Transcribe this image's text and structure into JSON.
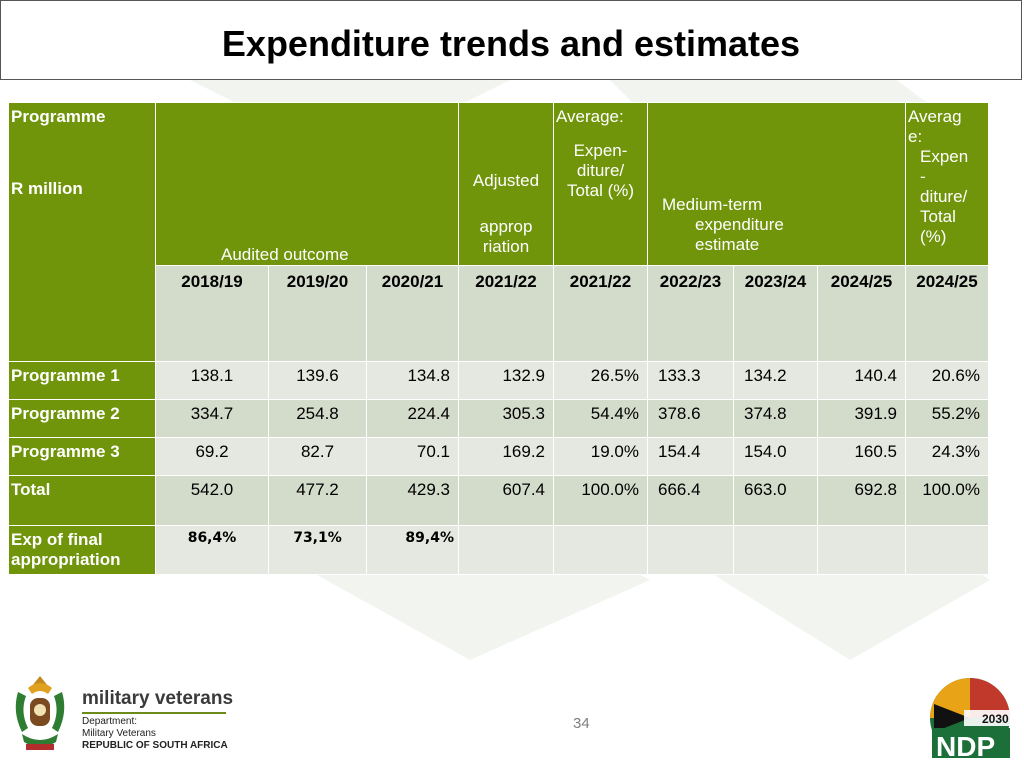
{
  "title": "Expenditure trends and estimates",
  "table": {
    "header": {
      "programme": "Programme",
      "unit": "R million",
      "audited": "Audited outcome",
      "adjusted_1": "Adjusted",
      "adjusted_2": "approp",
      "adjusted_3": "riation",
      "avg1_1": "Average:",
      "avg1_2": "Expen-",
      "avg1_3": "diture/",
      "avg1_4": "Total (%)",
      "mtef_1": "Medium-term",
      "mtef_2": "expenditure",
      "mtef_3": "estimate",
      "avg2_1": "Averag",
      "avg2_2": "e:",
      "avg2_3": "Expen",
      "avg2_4": "-",
      "avg2_5": "diture/",
      "avg2_6": "Total",
      "avg2_7": "(%)"
    },
    "years": [
      "2018/19",
      "2019/20",
      "2020/21",
      "2021/22",
      "2021/22",
      "2022/23",
      "2023/24",
      "2024/25",
      "2024/25"
    ],
    "rows": [
      {
        "label": "Programme 1",
        "values": [
          "138.1",
          "139.6",
          "134.8",
          "132.9",
          "26.5%",
          "133.3",
          "134.2",
          "140.4",
          "20.6%"
        ]
      },
      {
        "label": "Programme 2",
        "values": [
          "334.7",
          "254.8",
          "224.4",
          "305.3",
          "54.4%",
          "378.6",
          "374.8",
          "391.9",
          "55.2%"
        ]
      },
      {
        "label": "Programme 3",
        "values": [
          "69.2",
          "82.7",
          "70.1",
          "169.2",
          "19.0%",
          "154.4",
          "154.0",
          "160.5",
          "24.3%"
        ]
      },
      {
        "label": "Total",
        "values": [
          "542.0",
          "477.2",
          "429.3",
          "607.4",
          "100.0%",
          "666.4",
          "663.0",
          "692.8",
          "100.0%"
        ]
      }
    ],
    "exp_final": {
      "label_1": "Exp of final",
      "label_2": "appropriation",
      "values": [
        "86,4%",
        "73,1%",
        "89,4%"
      ]
    }
  },
  "page_number": "34",
  "footer": {
    "brand": "military veterans",
    "dept_1": "Department:",
    "dept_2": "Military Veterans",
    "dept_3": "REPUBLIC OF SOUTH AFRICA",
    "ndp_year": "2030",
    "ndp_text": "NDP"
  },
  "colors": {
    "header_green": "#70940a",
    "row_light": "#e4e8e0",
    "row_dark": "#d3dbcb"
  }
}
